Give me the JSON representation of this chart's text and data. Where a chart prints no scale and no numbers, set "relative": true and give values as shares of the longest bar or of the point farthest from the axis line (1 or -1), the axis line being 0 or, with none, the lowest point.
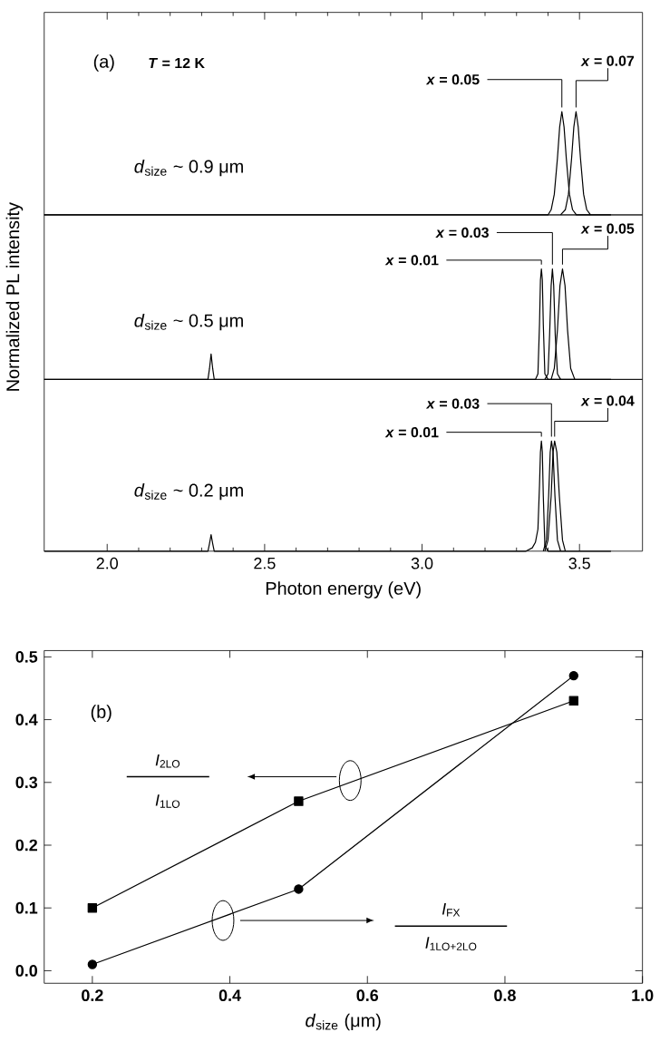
{
  "chart_data": [
    {
      "type": "line",
      "relative": true,
      "xlim": [
        1.8,
        3.7
      ],
      "xticks": [
        {
          "value": 2,
          "label": null
        },
        {
          "value": 2.5,
          "label": null
        },
        {
          "value": 3,
          "label": null
        },
        {
          "value": 3.5,
          "label": null
        }
      ],
      "tick_labels": false,
      "annotations": [
        "(a)",
        "*T* = 12 K",
        "*d*$_{size}$ ~ 0.9 μm"
      ],
      "series": [
        {
          "name": "*x* = 0.05",
          "color": "#000000",
          "x": [
            1.8,
            3.4,
            3.41,
            3.42,
            3.43,
            3.437,
            3.444,
            3.451,
            3.458,
            3.468,
            3.478,
            3.49,
            3.6
          ],
          "values": [
            0,
            0,
            0.05,
            0.2,
            0.55,
            0.85,
            1,
            0.85,
            0.55,
            0.2,
            0.05,
            0,
            0
          ]
        },
        {
          "name": "*x* = 0.07",
          "color": "#000000",
          "x": [
            3.44,
            3.455,
            3.465,
            3.475,
            3.482,
            3.489,
            3.496,
            3.503,
            3.513,
            3.523,
            3.535
          ],
          "values": [
            0,
            0.05,
            0.2,
            0.55,
            0.85,
            1,
            0.85,
            0.55,
            0.2,
            0.05,
            0
          ]
        }
      ]
    },
    {
      "type": "line",
      "relative": true,
      "ylabel": "Normalized PL intensity",
      "xlim": [
        1.8,
        3.7
      ],
      "tick_labels": false,
      "annotations": [
        "*d*$_{size}$ ~ 0.5 μm"
      ],
      "series": [
        {
          "name": "*x* = 0.01",
          "color": "#000000",
          "x": [
            1.8,
            2.32,
            2.325,
            2.33,
            2.335,
            2.34,
            3.36,
            3.368,
            3.373,
            3.376,
            3.379,
            3.382,
            3.385,
            3.39,
            3.4,
            3.6
          ],
          "values": [
            0,
            0,
            0.1,
            0.23,
            0.1,
            0,
            0,
            0.05,
            0.5,
            0.9,
            1,
            0.9,
            0.5,
            0.05,
            0,
            0
          ]
        },
        {
          "name": "*x* = 0.03",
          "color": "#000000",
          "x": [
            3.39,
            3.4,
            3.405,
            3.41,
            3.414,
            3.418,
            3.423,
            3.43,
            3.44
          ],
          "values": [
            0,
            0.05,
            0.4,
            0.85,
            1,
            0.85,
            0.4,
            0.05,
            0
          ]
        },
        {
          "name": "*x* = 0.05",
          "color": "#000000",
          "x": [
            3.41,
            3.42,
            3.43,
            3.438,
            3.446,
            3.454,
            3.462,
            3.472,
            3.485
          ],
          "values": [
            0,
            0.1,
            0.45,
            0.85,
            1,
            0.85,
            0.45,
            0.1,
            0
          ]
        }
      ]
    },
    {
      "type": "line",
      "relative": true,
      "xlabel": "Photon energy (eV)",
      "xlim": [
        1.8,
        3.7
      ],
      "xticks": [
        {
          "value": 2,
          "label": "2.0"
        },
        {
          "value": 2.5,
          "label": "2.5"
        },
        {
          "value": 3,
          "label": "3.0"
        },
        {
          "value": 3.5,
          "label": "3.5"
        }
      ],
      "tick_labels": "x",
      "annotations": [
        "*d*$_{size}$ ~ 0.2 μm"
      ],
      "series": [
        {
          "name": "*x* = 0.01",
          "color": "#000000",
          "x": [
            1.8,
            2.32,
            2.325,
            2.33,
            2.335,
            2.34,
            3.33,
            3.35,
            3.36,
            3.368,
            3.373,
            3.376,
            3.379,
            3.382,
            3.385,
            3.39,
            3.4,
            3.6
          ],
          "values": [
            0,
            0,
            0.07,
            0.15,
            0.07,
            0,
            0,
            0.03,
            0.08,
            0.2,
            0.6,
            0.9,
            1,
            0.9,
            0.5,
            0.05,
            0,
            0
          ]
        },
        {
          "name": "*x* = 0.03",
          "color": "#000000",
          "x": [
            3.385,
            3.395,
            3.402,
            3.407,
            3.411,
            3.416,
            3.422,
            3.43,
            3.44
          ],
          "values": [
            0,
            0.1,
            0.5,
            0.9,
            1,
            0.9,
            0.5,
            0.1,
            0
          ]
        },
        {
          "name": "*x* = 0.04",
          "color": "#000000",
          "x": [
            3.39,
            3.4,
            3.41,
            3.416,
            3.421,
            3.428,
            3.436,
            3.446,
            3.455
          ],
          "values": [
            0,
            0.1,
            0.5,
            0.9,
            1,
            0.9,
            0.5,
            0.1,
            0
          ]
        }
      ]
    },
    {
      "type": "line",
      "xlabel": "*d*$_{size}$ (μm)",
      "xlim": [
        0.13,
        1.0
      ],
      "ylim": [
        -0.02,
        0.51
      ],
      "xticks": [
        {
          "value": 0.2,
          "label": "0.2"
        },
        {
          "value": 0.4,
          "label": "0.4"
        },
        {
          "value": 0.6,
          "label": "0.6"
        },
        {
          "value": 0.8,
          "label": "0.8"
        },
        {
          "value": 1,
          "label": "1.0"
        }
      ],
      "yticks": [
        {
          "value": 0,
          "label": "0.0"
        },
        {
          "value": 0.1,
          "label": "0.1"
        },
        {
          "value": 0.2,
          "label": "0.2"
        },
        {
          "value": 0.3,
          "label": "0.3"
        },
        {
          "value": 0.4,
          "label": "0.4"
        },
        {
          "value": 0.5,
          "label": "0.5"
        }
      ],
      "annotations": [
        "(b)",
        "*I*$_{2LO}$",
        "*I*$_{1LO}$",
        "*I*$_{FX}$",
        "*I*$_{1LO+2LO}$"
      ],
      "series": [
        {
          "color": "#000000",
          "marker": "square",
          "x": [
            0.2,
            0.5,
            0.9
          ],
          "values": [
            0.1,
            0.27,
            0.43
          ]
        },
        {
          "color": "#000000",
          "marker": "circle",
          "x": [
            0.2,
            0.5,
            0.9
          ],
          "values": [
            0.01,
            0.13,
            0.47
          ]
        }
      ]
    }
  ]
}
